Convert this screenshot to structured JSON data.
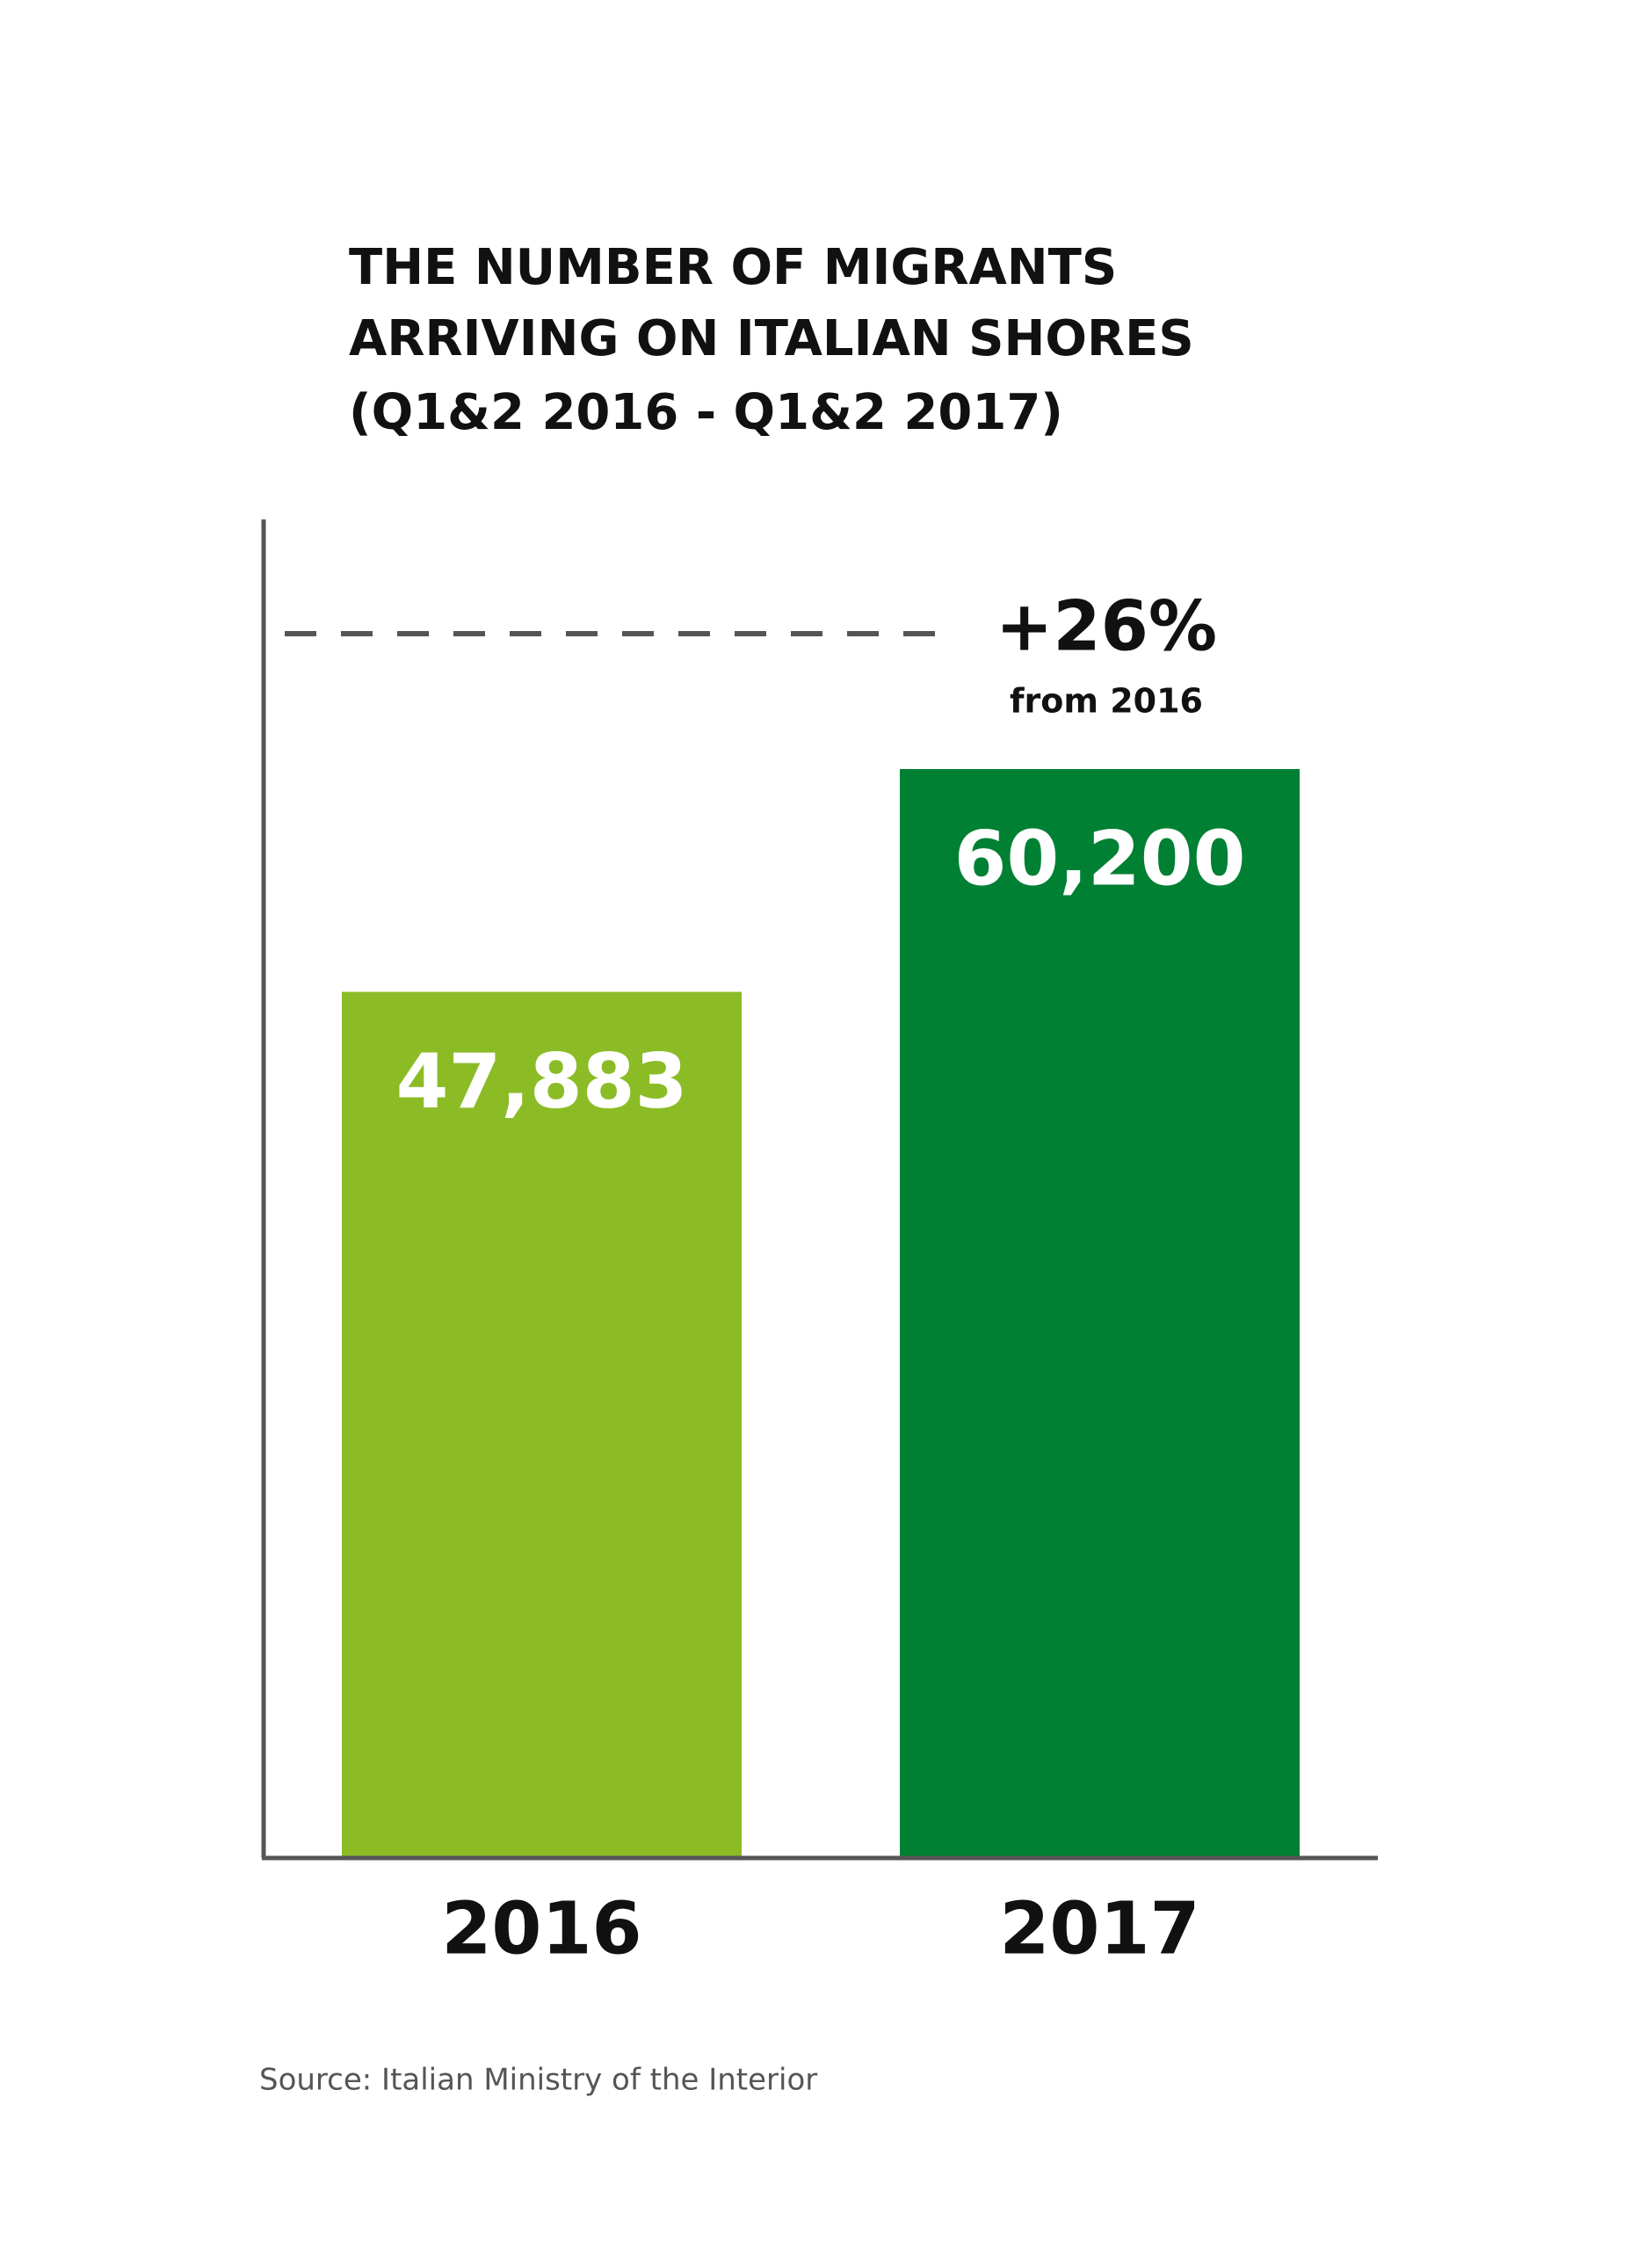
{
  "chart_data": {
    "type": "bar",
    "title": [
      "THE NUMBER OF MIGRANTS",
      "ARRIVING ON ITALIAN SHORES",
      "(Q1&2 2016 - Q1&2 2017)"
    ],
    "categories": [
      "2016",
      "2017"
    ],
    "values": [
      47883,
      60200
    ],
    "value_labels": [
      "47,883",
      "60,200"
    ],
    "colors": [
      "#8bbc26",
      "#008033"
    ],
    "ylim": [
      0,
      74000
    ],
    "annotation": {
      "text": "+26%",
      "subtext": "from 2016"
    },
    "source": "Source: Italian Ministry of the Interior"
  }
}
